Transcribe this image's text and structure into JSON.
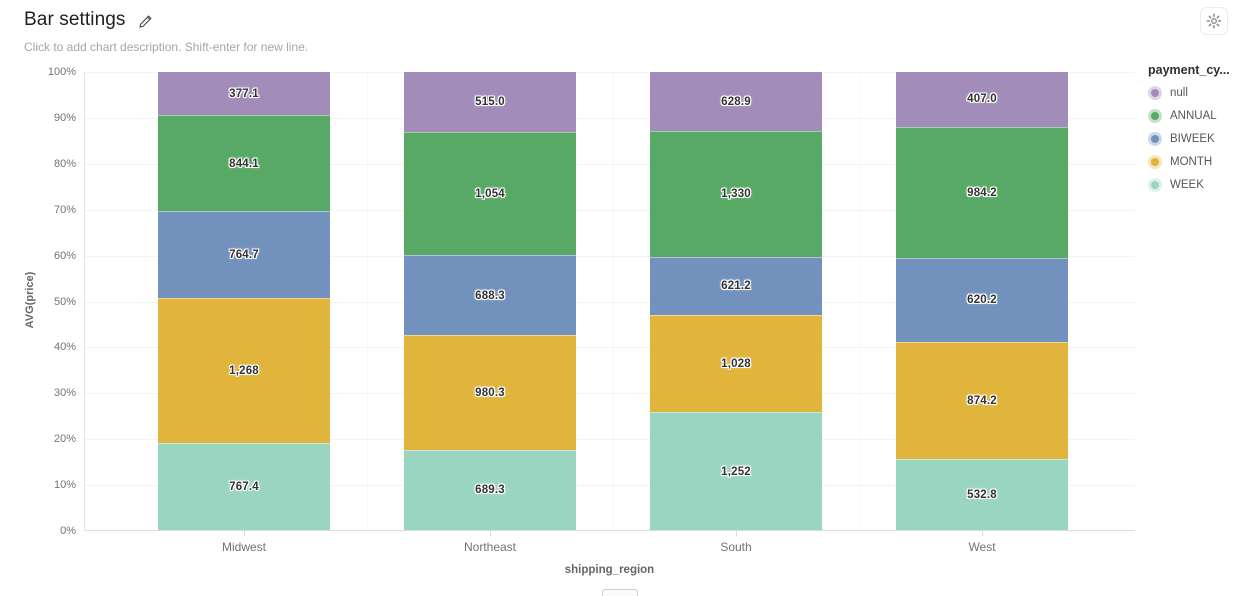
{
  "header": {
    "title": "Bar settings",
    "subtitle": "Click to add chart description. Shift-enter for new line."
  },
  "chart_data": {
    "type": "bar",
    "variant": "stacked-100-percent",
    "title": "Bar settings",
    "xlabel": "shipping_region",
    "ylabel": "AVG(price)",
    "ylim": [
      0,
      100
    ],
    "grid": true,
    "y_tick_labels": [
      "100%",
      "90%",
      "80%",
      "70%",
      "60%",
      "50%",
      "40%",
      "30%",
      "20%",
      "10%",
      "0%"
    ],
    "categories": [
      "Midwest",
      "Northeast",
      "South",
      "West"
    ],
    "series": [
      {
        "name": "WEEK",
        "color": "#9ad5c2",
        "values": [
          767.4,
          689.3,
          1252,
          532.8
        ],
        "labels": [
          "767.4",
          "689.3",
          "1,252",
          "532.8"
        ]
      },
      {
        "name": "MONTH",
        "color": "#e1b43c",
        "values": [
          1268,
          980.3,
          1028,
          874.2
        ],
        "labels": [
          "1,268",
          "980.3",
          "1,028",
          "874.2"
        ]
      },
      {
        "name": "BIWEEK",
        "color": "#7291bd",
        "values": [
          764.7,
          688.3,
          621.2,
          620.2
        ],
        "labels": [
          "764.7",
          "688.3",
          "621.2",
          "620.2"
        ]
      },
      {
        "name": "ANNUAL",
        "color": "#57a965",
        "values": [
          844.1,
          1054,
          1330,
          984.2
        ],
        "labels": [
          "844.1",
          "1,054",
          "1,330",
          "984.2"
        ]
      },
      {
        "name": "null",
        "color": "#a18cba",
        "values": [
          377.1,
          515.0,
          628.9,
          407.0
        ],
        "labels": [
          "377.1",
          "515.0",
          "628.9",
          "407.0"
        ]
      }
    ],
    "legend": {
      "title": "payment_cy...",
      "position": "right",
      "items": [
        {
          "label": "null",
          "color": "#a18cba"
        },
        {
          "label": "ANNUAL",
          "color": "#57a965"
        },
        {
          "label": "BIWEEK",
          "color": "#7291bd"
        },
        {
          "label": "MONTH",
          "color": "#e1b43c"
        },
        {
          "label": "WEEK",
          "color": "#9ad5c2"
        }
      ]
    }
  }
}
